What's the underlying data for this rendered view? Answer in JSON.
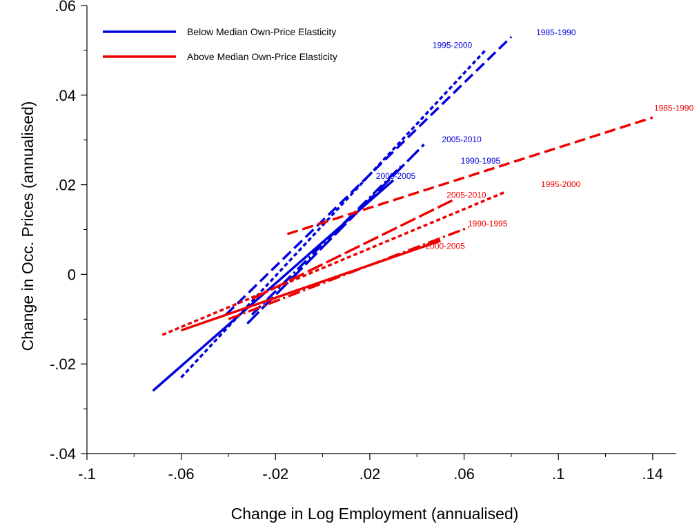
{
  "chart_data": {
    "type": "line",
    "xlabel": "Change in Log Employment (annualised)",
    "ylabel": "Change in Occ. Prices (annualised)",
    "xlim": [
      -0.1,
      0.15
    ],
    "ylim": [
      -0.04,
      0.06
    ],
    "x_ticks": [
      {
        "value": -0.1,
        "label": "-.1"
      },
      {
        "value": -0.06,
        "label": "-.06"
      },
      {
        "value": -0.02,
        "label": "-.02"
      },
      {
        "value": 0.02,
        "label": ".02"
      },
      {
        "value": 0.06,
        "label": ".06"
      },
      {
        "value": 0.1,
        "label": ".1"
      },
      {
        "value": 0.14,
        "label": ".14"
      }
    ],
    "y_ticks": [
      {
        "value": -0.04,
        "label": "-.04"
      },
      {
        "value": -0.02,
        "label": "-.02"
      },
      {
        "value": 0,
        "label": "0"
      },
      {
        "value": 0.02,
        "label": ".02"
      },
      {
        "value": 0.04,
        "label": ".04"
      },
      {
        "value": 0.06,
        "label": ".06"
      }
    ],
    "x_minor_ticks": [
      -0.08,
      -0.04,
      0,
      0.04,
      0.08,
      0.12
    ],
    "y_minor_ticks": [
      -0.03,
      -0.01,
      0.01,
      0.03,
      0.05
    ],
    "grid": false,
    "legend_position": "top-left",
    "legend": [
      {
        "label": "Below Median Own-Price Elasticity",
        "color": "#0000dd"
      },
      {
        "label": "Above Median Own-Price Elasticity",
        "color": "#ee0000"
      }
    ],
    "series": [
      {
        "name": "1985-1990",
        "group": "below",
        "color": "#0000dd",
        "dash": "dash",
        "x": [
          -0.041,
          0.08
        ],
        "y": [
          -0.009,
          0.053
        ],
        "label_at": [
          0.099,
          0.0534
        ]
      },
      {
        "name": "1995-2000",
        "group": "below",
        "color": "#0000dd",
        "dash": "shortdash",
        "x": [
          -0.06,
          0.069
        ],
        "y": [
          -0.023,
          0.05
        ],
        "label_at": [
          0.055,
          0.0505
        ]
      },
      {
        "name": "2005-2010",
        "group": "below",
        "color": "#0000dd",
        "dash": "longdash",
        "x": [
          -0.032,
          0.043
        ],
        "y": [
          -0.011,
          0.029
        ],
        "label_at": [
          0.059,
          0.0295
        ]
      },
      {
        "name": "1990-1995",
        "group": "below",
        "color": "#0000dd",
        "dash": "dashdot",
        "x": [
          -0.03,
          0.034
        ],
        "y": [
          -0.009,
          0.0245
        ],
        "label_at": [
          0.067,
          0.0247
        ]
      },
      {
        "name": "2000-2005",
        "group": "below",
        "color": "#0000dd",
        "dash": "solid",
        "x": [
          -0.072,
          0.03
        ],
        "y": [
          -0.026,
          0.021
        ],
        "label_at": [
          0.031,
          0.0213
        ]
      },
      {
        "name": "1985-1990",
        "group": "above",
        "color": "#ee0000",
        "dash": "dash",
        "x": [
          -0.015,
          0.14
        ],
        "y": [
          0.009,
          0.035
        ],
        "label_at": [
          0.149,
          0.0365
        ]
      },
      {
        "name": "1995-2000",
        "group": "above",
        "color": "#ee0000",
        "dash": "shortdash",
        "x": [
          -0.068,
          0.078
        ],
        "y": [
          -0.0135,
          0.0185
        ],
        "label_at": [
          0.101,
          0.0195
        ]
      },
      {
        "name": "2005-2010",
        "group": "above",
        "color": "#ee0000",
        "dash": "longdash",
        "x": [
          -0.03,
          0.055
        ],
        "y": [
          -0.0055,
          0.0165
        ],
        "label_at": [
          0.061,
          0.0171
        ]
      },
      {
        "name": "1990-1995",
        "group": "above",
        "color": "#ee0000",
        "dash": "dashdot",
        "x": [
          -0.04,
          0.062
        ],
        "y": [
          -0.01,
          0.0105
        ],
        "label_at": [
          0.07,
          0.0107
        ]
      },
      {
        "name": "2000-2005",
        "group": "above",
        "color": "#ee0000",
        "dash": "solid",
        "x": [
          -0.06,
          0.05
        ],
        "y": [
          -0.0125,
          0.0075
        ],
        "label_at": [
          0.052,
          0.0057
        ]
      }
    ]
  }
}
